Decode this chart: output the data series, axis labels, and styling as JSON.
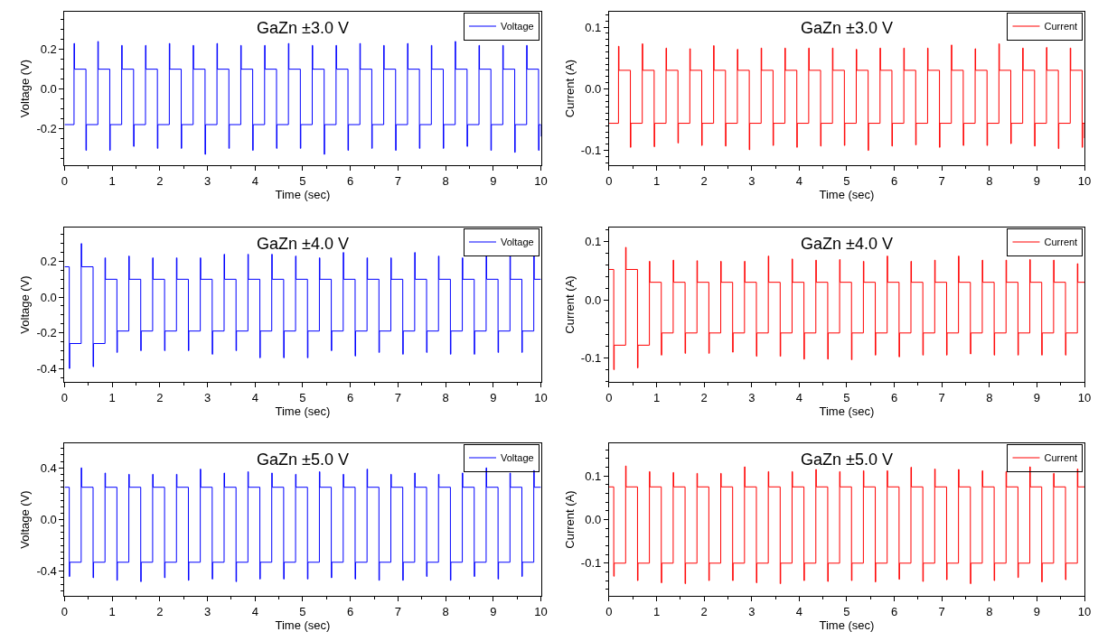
{
  "chart_data": [
    {
      "type": "step",
      "title": "GaZn ±3.0 V",
      "xlabel": "Time (sec)",
      "ylabel": "Voltage (V)",
      "xlim": [
        0,
        10
      ],
      "xticks": [
        0,
        1,
        2,
        3,
        4,
        5,
        6,
        7,
        8,
        9,
        10
      ],
      "ylim": [
        -0.385,
        0.39
      ],
      "yticks": [
        {
          "value": -0.2,
          "label": "-0.2"
        },
        {
          "value": 0,
          "label": "0.0"
        },
        {
          "value": 0.2,
          "label": "0.2"
        }
      ],
      "legend": "top right",
      "grid": false,
      "marker": "none",
      "line_style": "solid",
      "series": [
        {
          "name": "Voltage",
          "color": "#0000ff",
          "x": [
            0,
            0.2,
            0.21,
            0.45,
            0.46,
            0.7,
            0.71,
            0.95,
            0.96,
            1.2,
            1.21,
            1.45,
            1.46,
            1.7,
            1.71,
            1.95,
            1.96,
            2.2,
            2.21,
            2.45,
            2.46,
            2.7,
            2.71,
            2.95,
            2.96,
            3.2,
            3.21,
            3.45,
            3.46,
            3.7,
            3.71,
            3.95,
            3.96,
            4.2,
            4.21,
            4.45,
            4.46,
            4.7,
            4.71,
            4.95,
            4.96,
            5.2,
            5.21,
            5.45,
            5.46,
            5.7,
            5.71,
            5.95,
            5.96,
            6.2,
            6.21,
            6.45,
            6.46,
            6.7,
            6.71,
            6.95,
            6.96,
            7.2,
            7.21,
            7.45,
            7.46,
            7.7,
            7.71,
            7.95,
            7.96,
            8.2,
            8.21,
            8.45,
            8.46,
            8.7,
            8.71,
            8.95,
            8.96,
            9.2,
            9.21,
            9.45,
            9.46,
            9.7,
            9.71,
            9.95,
            9.96,
            10
          ],
          "values": [
            -0.18,
            0.23,
            0.1,
            -0.31,
            -0.18,
            0.24,
            0.1,
            -0.31,
            -0.18,
            0.22,
            0.1,
            -0.29,
            -0.18,
            0.22,
            0.1,
            -0.3,
            -0.18,
            0.23,
            0.1,
            -0.3,
            -0.18,
            0.22,
            0.1,
            -0.33,
            -0.18,
            0.23,
            0.1,
            -0.3,
            -0.18,
            0.22,
            0.1,
            -0.31,
            -0.18,
            0.22,
            0.1,
            -0.3,
            -0.18,
            0.23,
            0.1,
            -0.3,
            -0.18,
            0.22,
            0.1,
            -0.33,
            -0.18,
            0.22,
            0.1,
            -0.31,
            -0.18,
            0.23,
            0.1,
            -0.3,
            -0.18,
            0.22,
            0.1,
            -0.31,
            -0.18,
            0.23,
            0.1,
            -0.3,
            -0.18,
            0.22,
            0.1,
            -0.3,
            -0.18,
            0.24,
            0.1,
            -0.29,
            -0.18,
            0.22,
            0.1,
            -0.31,
            -0.18,
            0.22,
            0.1,
            -0.32,
            -0.18,
            0.22,
            0.1,
            -0.31,
            -0.18,
            -0.24
          ]
        }
      ]
    },
    {
      "type": "step",
      "title": "GaZn ±3.0 V",
      "xlabel": "Time (sec)",
      "ylabel": "Current (A)",
      "xlim": [
        0,
        10
      ],
      "xticks": [
        0,
        1,
        2,
        3,
        4,
        5,
        6,
        7,
        8,
        9,
        10
      ],
      "ylim": [
        -0.124,
        0.125
      ],
      "yticks": [
        {
          "value": -0.1,
          "label": "-0.1"
        },
        {
          "value": 0,
          "label": "0.0"
        },
        {
          "value": 0.1,
          "label": "0.1"
        }
      ],
      "legend": "top right",
      "grid": false,
      "marker": "none",
      "line_style": "solid",
      "series": [
        {
          "name": "Current",
          "color": "#ff0000",
          "x": [
            0,
            0.2,
            0.21,
            0.45,
            0.46,
            0.7,
            0.71,
            0.95,
            0.96,
            1.2,
            1.21,
            1.45,
            1.46,
            1.7,
            1.71,
            1.95,
            1.96,
            2.2,
            2.21,
            2.45,
            2.46,
            2.7,
            2.71,
            2.95,
            2.96,
            3.2,
            3.21,
            3.45,
            3.46,
            3.7,
            3.71,
            3.95,
            3.96,
            4.2,
            4.21,
            4.45,
            4.46,
            4.7,
            4.71,
            4.95,
            4.96,
            5.2,
            5.21,
            5.45,
            5.46,
            5.7,
            5.71,
            5.95,
            5.96,
            6.2,
            6.21,
            6.45,
            6.46,
            6.7,
            6.71,
            6.95,
            6.96,
            7.2,
            7.21,
            7.45,
            7.46,
            7.7,
            7.71,
            7.95,
            7.96,
            8.2,
            8.21,
            8.45,
            8.46,
            8.7,
            8.71,
            8.95,
            8.96,
            9.2,
            9.21,
            9.45,
            9.46,
            9.7,
            9.71,
            9.95,
            9.96,
            10
          ],
          "values": [
            -0.056,
            0.069,
            0.03,
            -0.095,
            -0.056,
            0.073,
            0.03,
            -0.094,
            -0.056,
            0.066,
            0.03,
            -0.088,
            -0.056,
            0.065,
            0.03,
            -0.092,
            -0.056,
            0.07,
            0.03,
            -0.093,
            -0.056,
            0.064,
            0.03,
            -0.099,
            -0.056,
            0.066,
            0.03,
            -0.092,
            -0.056,
            0.066,
            0.03,
            -0.095,
            -0.056,
            0.066,
            0.03,
            -0.093,
            -0.056,
            0.066,
            0.03,
            -0.092,
            -0.056,
            0.064,
            0.03,
            -0.1,
            -0.056,
            0.066,
            0.03,
            -0.093,
            -0.056,
            0.066,
            0.03,
            -0.091,
            -0.056,
            0.066,
            0.03,
            -0.095,
            -0.056,
            0.071,
            0.03,
            -0.092,
            -0.056,
            0.065,
            0.03,
            -0.092,
            -0.056,
            0.073,
            0.03,
            -0.089,
            -0.056,
            0.066,
            0.03,
            -0.093,
            -0.056,
            0.067,
            0.03,
            -0.097,
            -0.056,
            0.066,
            0.03,
            -0.095,
            -0.056,
            -0.08
          ]
        }
      ]
    },
    {
      "type": "step",
      "title": "GaZn ±4.0 V",
      "xlabel": "Time (sec)",
      "ylabel": "Voltage (V)",
      "xlim": [
        0,
        10
      ],
      "xticks": [
        0,
        1,
        2,
        3,
        4,
        5,
        6,
        7,
        8,
        9,
        10
      ],
      "ylim": [
        -0.475,
        0.39
      ],
      "yticks": [
        {
          "value": -0.4,
          "label": "-0.4"
        },
        {
          "value": -0.2,
          "label": "-0.2"
        },
        {
          "value": 0,
          "label": "0.0"
        },
        {
          "value": 0.2,
          "label": "0.2"
        }
      ],
      "legend": "top right",
      "grid": false,
      "marker": "none",
      "line_style": "solid",
      "series": [
        {
          "name": "Voltage",
          "color": "#0000ff",
          "x": [
            0,
            0.1,
            0.11,
            0.35,
            0.36,
            0.6,
            0.61,
            0.85,
            0.86,
            1.1,
            1.11,
            1.35,
            1.36,
            1.6,
            1.61,
            1.85,
            1.86,
            2.1,
            2.11,
            2.35,
            2.36,
            2.6,
            2.61,
            2.85,
            2.86,
            3.1,
            3.11,
            3.35,
            3.36,
            3.6,
            3.61,
            3.85,
            3.86,
            4.1,
            4.11,
            4.35,
            4.36,
            4.6,
            4.61,
            4.85,
            4.86,
            5.1,
            5.11,
            5.35,
            5.36,
            5.6,
            5.61,
            5.85,
            5.86,
            6.1,
            6.11,
            6.35,
            6.36,
            6.6,
            6.61,
            6.85,
            6.86,
            7.1,
            7.11,
            7.35,
            7.36,
            7.6,
            7.61,
            7.85,
            7.86,
            8.1,
            8.11,
            8.35,
            8.36,
            8.6,
            8.61,
            8.85,
            8.86,
            9.1,
            9.11,
            9.35,
            9.36,
            9.6,
            9.61,
            9.85,
            9.86,
            10
          ],
          "values": [
            0.17,
            -0.4,
            -0.26,
            0.3,
            0.17,
            -0.39,
            -0.26,
            0.22,
            0.1,
            -0.31,
            -0.19,
            0.23,
            0.1,
            -0.3,
            -0.19,
            0.22,
            0.1,
            -0.3,
            -0.19,
            0.22,
            0.1,
            -0.3,
            -0.19,
            0.22,
            0.1,
            -0.32,
            -0.19,
            0.24,
            0.1,
            -0.3,
            -0.19,
            0.24,
            0.1,
            -0.34,
            -0.19,
            0.24,
            0.1,
            -0.34,
            -0.19,
            0.23,
            0.1,
            -0.34,
            -0.19,
            0.22,
            0.1,
            -0.3,
            -0.19,
            0.25,
            0.1,
            -0.33,
            -0.19,
            0.22,
            0.1,
            -0.31,
            -0.19,
            0.22,
            0.1,
            -0.32,
            -0.19,
            0.25,
            0.1,
            -0.31,
            -0.19,
            0.23,
            0.1,
            -0.32,
            -0.19,
            0.22,
            0.1,
            -0.32,
            -0.19,
            0.23,
            0.1,
            -0.31,
            -0.19,
            0.23,
            0.1,
            -0.31,
            -0.19,
            0.23,
            0.1,
            0.1
          ]
        }
      ]
    },
    {
      "type": "step",
      "title": "GaZn ±4.0 V",
      "xlabel": "Time (sec)",
      "ylabel": "Current (A)",
      "xlim": [
        0,
        10
      ],
      "xticks": [
        0,
        1,
        2,
        3,
        4,
        5,
        6,
        7,
        8,
        9,
        10
      ],
      "ylim": [
        -0.141,
        0.124
      ],
      "yticks": [
        {
          "value": -0.1,
          "label": "-0.1"
        },
        {
          "value": 0,
          "label": "0.0"
        },
        {
          "value": 0.1,
          "label": "0.1"
        }
      ],
      "legend": "top right",
      "grid": false,
      "marker": "none",
      "line_style": "solid",
      "series": [
        {
          "name": "Current",
          "color": "#ff0000",
          "x": [
            0,
            0.1,
            0.11,
            0.35,
            0.36,
            0.6,
            0.61,
            0.85,
            0.86,
            1.1,
            1.11,
            1.35,
            1.36,
            1.6,
            1.61,
            1.85,
            1.86,
            2.1,
            2.11,
            2.35,
            2.36,
            2.6,
            2.61,
            2.85,
            2.86,
            3.1,
            3.11,
            3.35,
            3.36,
            3.6,
            3.61,
            3.85,
            3.86,
            4.1,
            4.11,
            4.35,
            4.36,
            4.6,
            4.61,
            4.85,
            4.86,
            5.1,
            5.11,
            5.35,
            5.36,
            5.6,
            5.61,
            5.85,
            5.86,
            6.1,
            6.11,
            6.35,
            6.36,
            6.6,
            6.61,
            6.85,
            6.86,
            7.1,
            7.11,
            7.35,
            7.36,
            7.6,
            7.61,
            7.85,
            7.86,
            8.1,
            8.11,
            8.35,
            8.36,
            8.6,
            8.61,
            8.85,
            8.86,
            9.1,
            9.11,
            9.35,
            9.36,
            9.6,
            9.61,
            9.85,
            9.86,
            10
          ],
          "values": [
            0.052,
            -0.12,
            -0.078,
            0.09,
            0.052,
            -0.117,
            -0.078,
            0.066,
            0.03,
            -0.095,
            -0.057,
            0.068,
            0.03,
            -0.092,
            -0.057,
            0.067,
            0.03,
            -0.092,
            -0.057,
            0.066,
            0.03,
            -0.09,
            -0.057,
            0.066,
            0.03,
            -0.097,
            -0.057,
            0.075,
            0.03,
            -0.097,
            -0.057,
            0.07,
            0.03,
            -0.102,
            -0.057,
            0.068,
            0.03,
            -0.102,
            -0.057,
            0.069,
            0.03,
            -0.103,
            -0.057,
            0.066,
            0.03,
            -0.095,
            -0.057,
            0.075,
            0.03,
            -0.098,
            -0.057,
            0.066,
            0.03,
            -0.095,
            -0.057,
            0.068,
            0.03,
            -0.095,
            -0.057,
            0.075,
            0.03,
            -0.093,
            -0.057,
            0.068,
            0.03,
            -0.095,
            -0.057,
            0.068,
            0.03,
            -0.095,
            -0.057,
            0.069,
            0.03,
            -0.095,
            -0.057,
            0.068,
            0.03,
            -0.095,
            -0.057,
            0.062,
            0.03,
            0.03
          ]
        }
      ]
    },
    {
      "type": "step",
      "title": "GaZn ±5.0 V",
      "xlabel": "Time (sec)",
      "ylabel": "Voltage (V)",
      "xlim": [
        0,
        10
      ],
      "xticks": [
        0,
        1,
        2,
        3,
        4,
        5,
        6,
        7,
        8,
        9,
        10
      ],
      "ylim": [
        -0.59,
        0.59
      ],
      "yticks": [
        {
          "value": -0.4,
          "label": "-0.4"
        },
        {
          "value": 0,
          "label": "0.0"
        },
        {
          "value": 0.4,
          "label": "0.4"
        }
      ],
      "legend": "top right",
      "grid": false,
      "marker": "none",
      "line_style": "solid",
      "series": [
        {
          "name": "Voltage",
          "color": "#0000ff",
          "x": [
            0,
            0.1,
            0.11,
            0.35,
            0.36,
            0.6,
            0.61,
            0.85,
            0.86,
            1.1,
            1.11,
            1.35,
            1.36,
            1.6,
            1.61,
            1.85,
            1.86,
            2.1,
            2.11,
            2.35,
            2.36,
            2.6,
            2.61,
            2.85,
            2.86,
            3.1,
            3.11,
            3.35,
            3.36,
            3.6,
            3.61,
            3.85,
            3.86,
            4.1,
            4.11,
            4.35,
            4.36,
            4.6,
            4.61,
            4.85,
            4.86,
            5.1,
            5.11,
            5.35,
            5.36,
            5.6,
            5.61,
            5.85,
            5.86,
            6.1,
            6.11,
            6.35,
            6.36,
            6.6,
            6.61,
            6.85,
            6.86,
            7.1,
            7.11,
            7.35,
            7.36,
            7.6,
            7.61,
            7.85,
            7.86,
            8.1,
            8.11,
            8.35,
            8.36,
            8.6,
            8.61,
            8.85,
            8.86,
            9.1,
            9.11,
            9.35,
            9.36,
            9.6,
            9.61,
            9.85,
            9.86,
            10
          ],
          "values": [
            0.25,
            -0.44,
            -0.33,
            0.4,
            0.25,
            -0.45,
            -0.33,
            0.36,
            0.25,
            -0.47,
            -0.33,
            0.35,
            0.25,
            -0.48,
            -0.33,
            0.35,
            0.25,
            -0.45,
            -0.33,
            0.35,
            0.25,
            -0.47,
            -0.33,
            0.39,
            0.25,
            -0.46,
            -0.33,
            0.36,
            0.25,
            -0.48,
            -0.33,
            0.37,
            0.25,
            -0.46,
            -0.33,
            0.36,
            0.25,
            -0.46,
            -0.33,
            0.35,
            0.25,
            -0.46,
            -0.33,
            0.37,
            0.25,
            -0.45,
            -0.33,
            0.35,
            0.25,
            -0.46,
            -0.33,
            0.39,
            0.25,
            -0.47,
            -0.33,
            0.35,
            0.25,
            -0.47,
            -0.33,
            0.36,
            0.25,
            -0.44,
            -0.33,
            0.35,
            0.25,
            -0.47,
            -0.33,
            0.36,
            0.25,
            -0.44,
            -0.33,
            0.4,
            0.25,
            -0.46,
            -0.33,
            0.36,
            0.25,
            -0.44,
            -0.33,
            0.38,
            0.25,
            0.25
          ]
        }
      ]
    },
    {
      "type": "step",
      "title": "GaZn ±5.0 V",
      "xlabel": "Time (sec)",
      "ylabel": "Current (A)",
      "xlim": [
        0,
        10
      ],
      "xticks": [
        0,
        1,
        2,
        3,
        4,
        5,
        6,
        7,
        8,
        9,
        10
      ],
      "ylim": [
        -0.175,
        0.175
      ],
      "yticks": [
        {
          "value": -0.1,
          "label": "-0.1"
        },
        {
          "value": 0,
          "label": "0.0"
        },
        {
          "value": 0.1,
          "label": "0.1"
        }
      ],
      "legend": "top right",
      "grid": false,
      "marker": "none",
      "line_style": "solid",
      "series": [
        {
          "name": "Current",
          "color": "#ff0000",
          "x": [
            0,
            0.1,
            0.11,
            0.35,
            0.36,
            0.6,
            0.61,
            0.85,
            0.86,
            1.1,
            1.11,
            1.35,
            1.36,
            1.6,
            1.61,
            1.85,
            1.86,
            2.1,
            2.11,
            2.35,
            2.36,
            2.6,
            2.61,
            2.85,
            2.86,
            3.1,
            3.11,
            3.35,
            3.36,
            3.6,
            3.61,
            3.85,
            3.86,
            4.1,
            4.11,
            4.35,
            4.36,
            4.6,
            4.61,
            4.85,
            4.86,
            5.1,
            5.11,
            5.35,
            5.36,
            5.6,
            5.61,
            5.85,
            5.86,
            6.1,
            6.11,
            6.35,
            6.36,
            6.6,
            6.61,
            6.85,
            6.86,
            7.1,
            7.11,
            7.35,
            7.36,
            7.6,
            7.61,
            7.85,
            7.86,
            8.1,
            8.11,
            8.35,
            8.36,
            8.6,
            8.61,
            8.85,
            8.86,
            9.1,
            9.11,
            9.35,
            9.36,
            9.6,
            9.61,
            9.85,
            9.86,
            10
          ],
          "values": [
            0.075,
            -0.13,
            -0.1,
            0.123,
            0.075,
            -0.14,
            -0.1,
            0.11,
            0.075,
            -0.145,
            -0.1,
            0.108,
            0.075,
            -0.147,
            -0.1,
            0.106,
            0.075,
            -0.14,
            -0.1,
            0.106,
            0.075,
            -0.14,
            -0.1,
            0.121,
            0.075,
            -0.145,
            -0.1,
            0.11,
            0.075,
            -0.147,
            -0.1,
            0.11,
            0.075,
            -0.14,
            -0.1,
            0.115,
            0.075,
            -0.142,
            -0.1,
            0.11,
            0.075,
            -0.14,
            -0.1,
            0.112,
            0.075,
            -0.143,
            -0.1,
            0.112,
            0.075,
            -0.137,
            -0.1,
            0.12,
            0.075,
            -0.142,
            -0.1,
            0.116,
            0.075,
            -0.138,
            -0.1,
            0.115,
            0.075,
            -0.147,
            -0.1,
            0.112,
            0.075,
            -0.14,
            -0.1,
            0.11,
            0.075,
            -0.133,
            -0.1,
            0.121,
            0.075,
            -0.143,
            -0.1,
            0.106,
            0.075,
            -0.138,
            -0.1,
            0.116,
            0.075,
            0.075
          ]
        }
      ]
    }
  ]
}
